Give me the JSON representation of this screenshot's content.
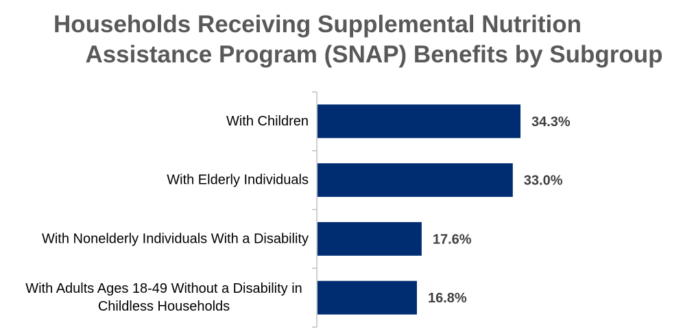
{
  "chart_data": {
    "type": "bar",
    "orientation": "horizontal",
    "title": "Households Receiving Supplemental Nutrition Assistance Program (SNAP) Benefits by Subgroup",
    "title_lines": [
      "Households Receiving Supplemental Nutrition",
      "Assistance Program (SNAP) Benefits by Subgroup"
    ],
    "categories": [
      [
        "With Children"
      ],
      [
        "With Elderly Individuals"
      ],
      [
        "With Nonelderly Individuals With a Disability"
      ],
      [
        "With Adults Ages 18-49 Without a Disability in",
        "Childless Households"
      ]
    ],
    "values": [
      34.3,
      33.0,
      17.6,
      16.8
    ],
    "data_labels": [
      "34.3%",
      "33.0%",
      "17.6%",
      "16.8%"
    ],
    "xlim": [
      0,
      40
    ],
    "bar_color": "#002D72",
    "axis_color": "#BFBFBF",
    "grid": false,
    "legend": "none"
  }
}
